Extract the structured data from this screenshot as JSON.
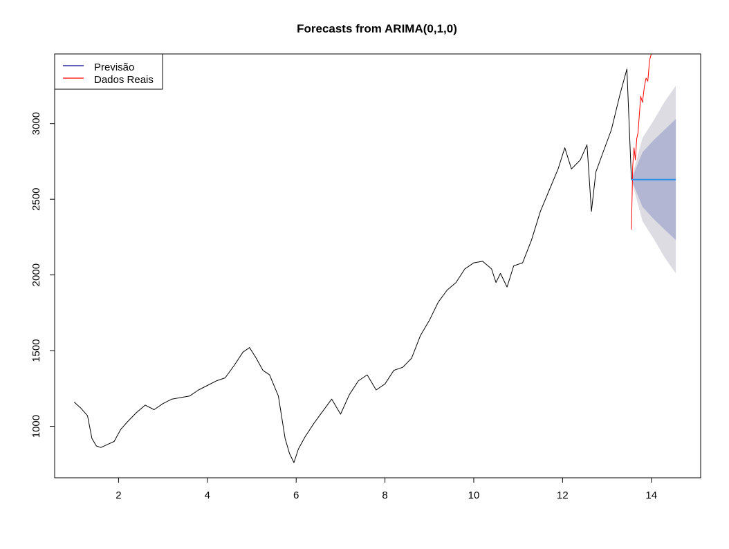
{
  "chart_data": {
    "type": "line",
    "title": "Forecasts from ARIMA(0,1,0)",
    "xlabel": "",
    "ylabel": "",
    "xlim": [
      0.56,
      15.11
    ],
    "ylim": [
      660,
      3460
    ],
    "x_ticks": [
      2,
      4,
      6,
      8,
      10,
      12,
      14
    ],
    "y_ticks": [
      1000,
      1500,
      2000,
      2500,
      3000
    ],
    "legend_position": "top-left",
    "legend": [
      {
        "label": "Previsão",
        "color": "#00008b"
      },
      {
        "label": "Dados Reais",
        "color": "#ff0000"
      }
    ],
    "series": [
      {
        "name": "Previsão",
        "role": "history",
        "color": "#000000",
        "x": [
          1.0,
          1.15,
          1.3,
          1.4,
          1.5,
          1.6,
          1.75,
          1.9,
          2.05,
          2.2,
          2.4,
          2.6,
          2.8,
          3.0,
          3.2,
          3.4,
          3.6,
          3.8,
          4.0,
          4.2,
          4.4,
          4.6,
          4.8,
          4.95,
          5.1,
          5.25,
          5.4,
          5.6,
          5.75,
          5.85,
          5.95,
          6.05,
          6.2,
          6.4,
          6.6,
          6.8,
          7.0,
          7.2,
          7.4,
          7.6,
          7.8,
          8.0,
          8.2,
          8.4,
          8.6,
          8.8,
          9.0,
          9.2,
          9.4,
          9.6,
          9.8,
          10.0,
          10.2,
          10.4,
          10.5,
          10.6,
          10.75,
          10.9,
          11.1,
          11.3,
          11.5,
          11.7,
          11.9,
          12.05,
          12.2,
          12.4,
          12.55,
          12.65,
          12.75,
          12.9,
          13.1,
          13.3,
          13.45,
          13.55
        ],
        "y": [
          1160,
          1120,
          1070,
          920,
          870,
          860,
          880,
          900,
          980,
          1030,
          1090,
          1140,
          1110,
          1150,
          1180,
          1190,
          1200,
          1240,
          1270,
          1300,
          1320,
          1400,
          1490,
          1520,
          1450,
          1370,
          1340,
          1200,
          920,
          820,
          760,
          850,
          930,
          1020,
          1100,
          1180,
          1080,
          1210,
          1300,
          1340,
          1240,
          1280,
          1370,
          1390,
          1450,
          1600,
          1700,
          1820,
          1900,
          1950,
          2040,
          2080,
          2090,
          2040,
          1950,
          2010,
          1920,
          2060,
          2080,
          2230,
          2420,
          2560,
          2700,
          2840,
          2700,
          2760,
          2860,
          2420,
          2680,
          2800,
          2960,
          3200,
          3360,
          2630
        ]
      },
      {
        "name": "Dados Reais",
        "role": "actual",
        "color": "#ff0000",
        "x": [
          13.55,
          13.58,
          13.61,
          13.64,
          13.67,
          13.7,
          13.73,
          13.76,
          13.8,
          13.84,
          13.88,
          13.92,
          13.96,
          14.0
        ],
        "y": [
          2300,
          2720,
          2840,
          2760,
          2900,
          2940,
          3060,
          3180,
          3140,
          3240,
          3300,
          3280,
          3420,
          3460
        ]
      },
      {
        "name": "point forecast",
        "role": "mean",
        "color": "#2b8fe8",
        "x": [
          13.55,
          14.55
        ],
        "y": [
          2630,
          2630
        ]
      }
    ],
    "forecast_bands": [
      {
        "level": 95,
        "color": "#dcdce2",
        "x": [
          13.55,
          13.8,
          14.05,
          14.3,
          14.55
        ],
        "lower": [
          2630,
          2355,
          2240,
          2115,
          2010
        ],
        "upper": [
          2630,
          2905,
          3020,
          3145,
          3250
        ]
      },
      {
        "level": 80,
        "color": "#b2b6d2",
        "x": [
          13.55,
          13.8,
          14.05,
          14.3,
          14.55
        ],
        "lower": [
          2630,
          2450,
          2370,
          2300,
          2230
        ],
        "upper": [
          2630,
          2810,
          2890,
          2960,
          3030
        ]
      }
    ]
  }
}
